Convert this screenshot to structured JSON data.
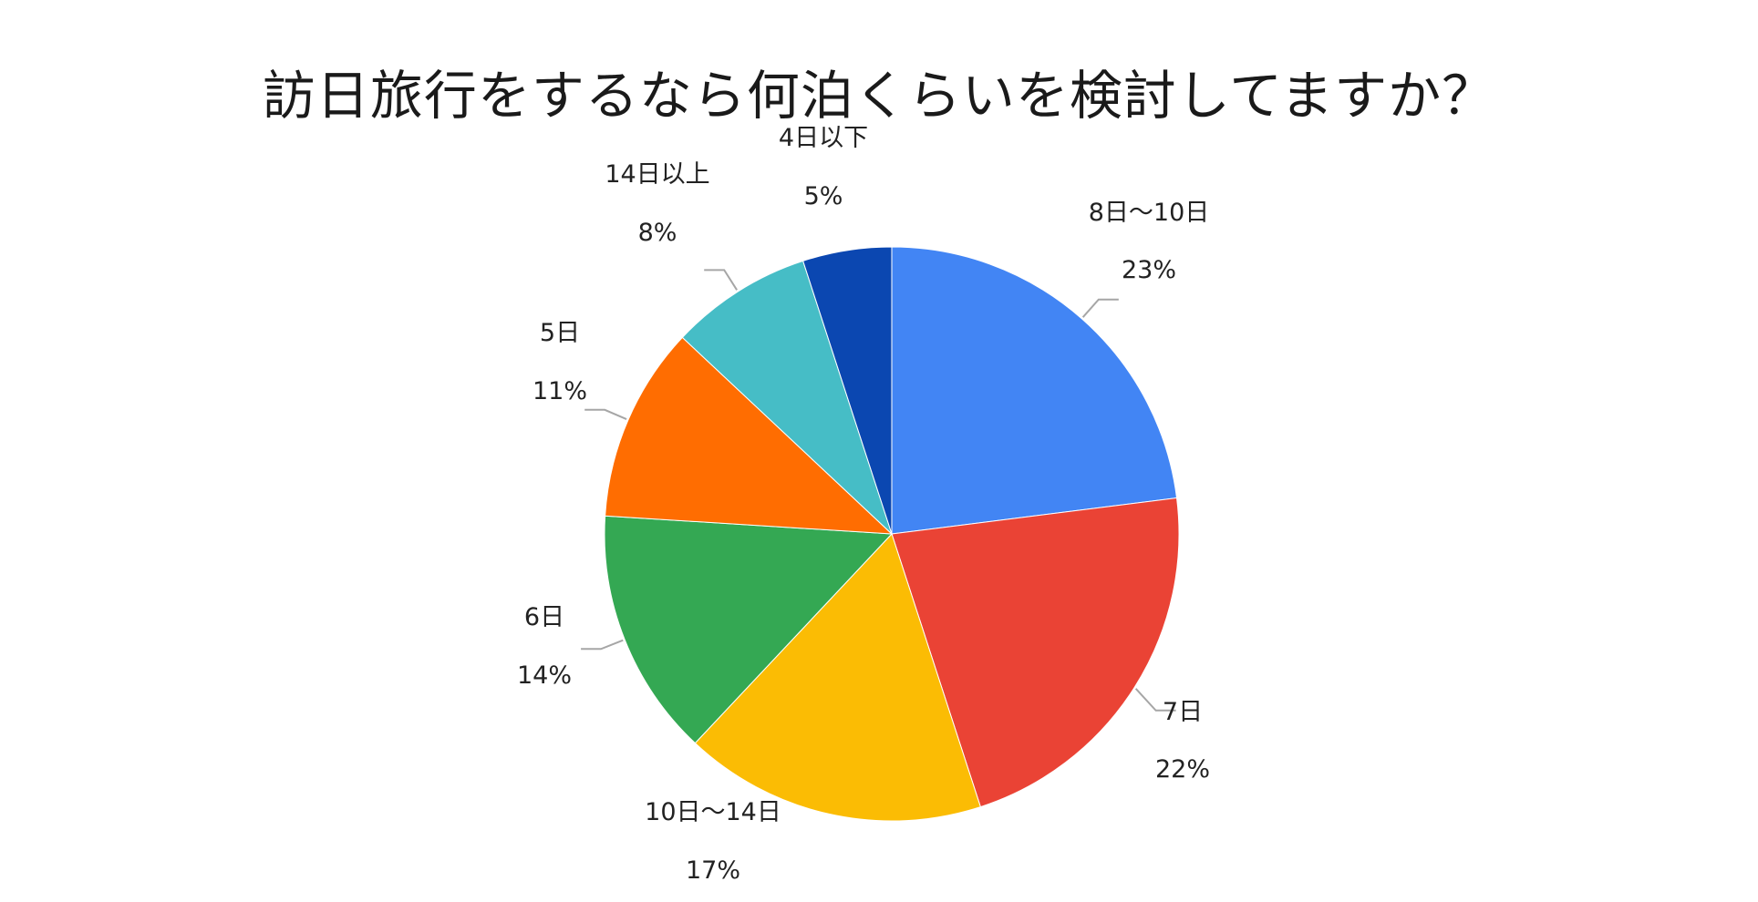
{
  "chart_data": {
    "type": "pie",
    "title": "訪日旅行をするなら何泊くらいを検討してますか？",
    "start_angle_deg": 0,
    "direction": "clockwise",
    "slices": [
      {
        "label": "8日〜10日",
        "percent_label": "23%",
        "value": 23,
        "color": "#4285f4"
      },
      {
        "label": "7日",
        "percent_label": "22%",
        "value": 22,
        "color": "#ea4335"
      },
      {
        "label": "10日〜14日",
        "percent_label": "17%",
        "value": 17,
        "color": "#fbbc04"
      },
      {
        "label": "6日",
        "percent_label": "14%",
        "value": 14,
        "color": "#34a853"
      },
      {
        "label": "5日",
        "percent_label": "11%",
        "value": 11,
        "color": "#ff6d01"
      },
      {
        "label": "14日以上",
        "percent_label": "8%",
        "value": 8,
        "color": "#46bdc6"
      },
      {
        "label": "4日以下",
        "percent_label": "5%",
        "value": 5,
        "color": "#0b47b1"
      }
    ]
  }
}
